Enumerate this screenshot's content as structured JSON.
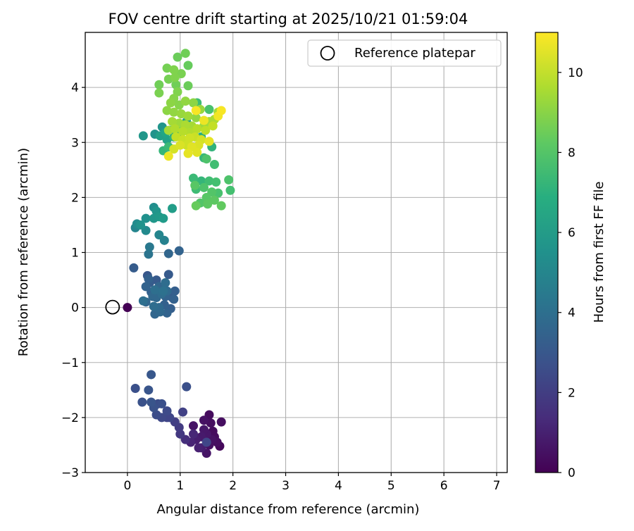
{
  "chart_data": {
    "type": "scatter",
    "title": "FOV centre drift starting at 2025/10/21 01:59:04",
    "xlabel": "Angular distance from reference (arcmin)",
    "ylabel": "Rotation from reference (arcmin)",
    "xlim": [
      -0.8,
      7.2
    ],
    "ylim": [
      -3.0,
      5.0
    ],
    "xticks": [
      0,
      1,
      2,
      3,
      4,
      5,
      6,
      7
    ],
    "yticks": [
      -3,
      -2,
      -1,
      0,
      1,
      2,
      3,
      4
    ],
    "xtick_labels": [
      "0",
      "1",
      "2",
      "3",
      "4",
      "5",
      "6",
      "7"
    ],
    "ytick_labels": [
      "−3",
      "−2",
      "−1",
      "0",
      "1",
      "2",
      "3",
      "4"
    ],
    "grid": true,
    "legend": {
      "label": "Reference platepar",
      "placement": "top-right",
      "marker": "hollow-circle"
    },
    "reference_point": {
      "x": 0,
      "y": 0
    },
    "colorbar": {
      "label": "Hours from first FF file",
      "range": [
        0,
        11
      ],
      "ticks": [
        0,
        2,
        4,
        6,
        8,
        10
      ],
      "tick_labels": [
        "0",
        "2",
        "4",
        "6",
        "8",
        "10"
      ],
      "colormap": "viridis"
    },
    "series": [
      {
        "name": "FOV centre",
        "points": [
          {
            "x": 0.0,
            "y": 0.0,
            "h": 0.0
          },
          {
            "x": 1.55,
            "y": -1.95,
            "h": 0.3
          },
          {
            "x": 1.78,
            "y": -2.08,
            "h": 0.4
          },
          {
            "x": 1.45,
            "y": -2.05,
            "h": 0.5
          },
          {
            "x": 1.25,
            "y": -2.15,
            "h": 0.6
          },
          {
            "x": 1.62,
            "y": -2.25,
            "h": 0.3
          },
          {
            "x": 1.5,
            "y": -2.3,
            "h": 0.7
          },
          {
            "x": 1.4,
            "y": -2.35,
            "h": 0.8
          },
          {
            "x": 1.3,
            "y": -2.4,
            "h": 0.9
          },
          {
            "x": 1.6,
            "y": -2.4,
            "h": 0.5
          },
          {
            "x": 1.7,
            "y": -2.45,
            "h": 0.4
          },
          {
            "x": 1.75,
            "y": -2.52,
            "h": 0.2
          },
          {
            "x": 1.35,
            "y": -2.55,
            "h": 1.0
          },
          {
            "x": 1.5,
            "y": -2.65,
            "h": 0.6
          },
          {
            "x": 1.2,
            "y": -2.45,
            "h": 1.1
          },
          {
            "x": 1.65,
            "y": -2.35,
            "h": 0.3
          },
          {
            "x": 1.45,
            "y": -2.22,
            "h": 0.7
          },
          {
            "x": 1.55,
            "y": -2.5,
            "h": 0.5
          },
          {
            "x": 1.25,
            "y": -2.3,
            "h": 1.2
          },
          {
            "x": 1.4,
            "y": -2.55,
            "h": 0.9
          },
          {
            "x": 1.58,
            "y": -2.1,
            "h": 0.4
          },
          {
            "x": 1.5,
            "y": -2.45,
            "h": 2.3
          },
          {
            "x": 1.1,
            "y": -2.4,
            "h": 1.5
          },
          {
            "x": 1.0,
            "y": -2.3,
            "h": 1.8
          },
          {
            "x": 0.98,
            "y": -2.18,
            "h": 1.9
          },
          {
            "x": 1.05,
            "y": -1.9,
            "h": 2.1
          },
          {
            "x": 0.75,
            "y": -2.0,
            "h": 2.2
          },
          {
            "x": 0.65,
            "y": -2.0,
            "h": 2.4
          },
          {
            "x": 0.75,
            "y": -1.88,
            "h": 2.5
          },
          {
            "x": 0.55,
            "y": -1.95,
            "h": 2.6
          },
          {
            "x": 0.65,
            "y": -1.75,
            "h": 2.7
          },
          {
            "x": 0.5,
            "y": -1.82,
            "h": 2.8
          },
          {
            "x": 0.45,
            "y": -1.72,
            "h": 2.9
          },
          {
            "x": 0.58,
            "y": -1.75,
            "h": 2.6
          },
          {
            "x": 0.28,
            "y": -1.72,
            "h": 2.8
          },
          {
            "x": 0.15,
            "y": -1.47,
            "h": 2.7
          },
          {
            "x": 0.4,
            "y": -1.5,
            "h": 2.9
          },
          {
            "x": 0.45,
            "y": -1.22,
            "h": 3.0
          },
          {
            "x": 1.12,
            "y": -1.44,
            "h": 2.7
          },
          {
            "x": 0.9,
            "y": -2.08,
            "h": 2.0
          },
          {
            "x": 0.8,
            "y": -2.0,
            "h": 2.3
          },
          {
            "x": 0.52,
            "y": -0.12,
            "h": 3.6
          },
          {
            "x": 0.62,
            "y": -0.08,
            "h": 3.7
          },
          {
            "x": 0.75,
            "y": -0.1,
            "h": 3.5
          },
          {
            "x": 0.6,
            "y": 0.0,
            "h": 3.8
          },
          {
            "x": 0.7,
            "y": 0.05,
            "h": 3.4
          },
          {
            "x": 0.82,
            "y": -0.02,
            "h": 3.3
          },
          {
            "x": 0.5,
            "y": 0.02,
            "h": 3.9
          },
          {
            "x": 0.3,
            "y": 0.12,
            "h": 4.0
          },
          {
            "x": 0.35,
            "y": 0.1,
            "h": 3.6
          },
          {
            "x": 0.55,
            "y": 0.18,
            "h": 3.7
          },
          {
            "x": 0.72,
            "y": 0.2,
            "h": 3.5
          },
          {
            "x": 0.85,
            "y": 0.18,
            "h": 3.2
          },
          {
            "x": 0.65,
            "y": 0.25,
            "h": 3.9
          },
          {
            "x": 0.45,
            "y": 0.28,
            "h": 3.4
          },
          {
            "x": 0.75,
            "y": 0.3,
            "h": 3.8
          },
          {
            "x": 0.9,
            "y": 0.3,
            "h": 3.3
          },
          {
            "x": 0.68,
            "y": 0.3,
            "h": 4.1
          },
          {
            "x": 0.35,
            "y": 0.38,
            "h": 3.5
          },
          {
            "x": 0.6,
            "y": 0.38,
            "h": 3.6
          },
          {
            "x": 0.42,
            "y": 0.45,
            "h": 3.2
          },
          {
            "x": 0.55,
            "y": 0.5,
            "h": 3.1
          },
          {
            "x": 0.4,
            "y": 0.52,
            "h": 3.4
          },
          {
            "x": 0.72,
            "y": 0.45,
            "h": 3.9
          },
          {
            "x": 0.38,
            "y": 0.58,
            "h": 3.0
          },
          {
            "x": 0.78,
            "y": 0.6,
            "h": 3.1
          },
          {
            "x": 0.48,
            "y": 0.2,
            "h": 3.7
          },
          {
            "x": 0.52,
            "y": 0.32,
            "h": 4.0
          },
          {
            "x": 0.88,
            "y": 0.15,
            "h": 3.4
          },
          {
            "x": 0.12,
            "y": 0.72,
            "h": 3.2
          },
          {
            "x": 0.78,
            "y": 0.98,
            "h": 3.6
          },
          {
            "x": 0.98,
            "y": 1.03,
            "h": 3.5
          },
          {
            "x": 0.4,
            "y": 0.97,
            "h": 4.2
          },
          {
            "x": 0.42,
            "y": 1.1,
            "h": 4.4
          },
          {
            "x": 0.7,
            "y": 1.22,
            "h": 4.8
          },
          {
            "x": 0.6,
            "y": 1.32,
            "h": 5.0
          },
          {
            "x": 0.35,
            "y": 1.4,
            "h": 5.2
          },
          {
            "x": 0.15,
            "y": 1.45,
            "h": 5.0
          },
          {
            "x": 0.18,
            "y": 1.52,
            "h": 5.3
          },
          {
            "x": 0.25,
            "y": 1.5,
            "h": 5.6
          },
          {
            "x": 0.35,
            "y": 1.62,
            "h": 5.5
          },
          {
            "x": 0.5,
            "y": 1.62,
            "h": 5.8
          },
          {
            "x": 0.6,
            "y": 1.65,
            "h": 5.9
          },
          {
            "x": 0.68,
            "y": 1.62,
            "h": 6.0
          },
          {
            "x": 0.55,
            "y": 1.75,
            "h": 5.7
          },
          {
            "x": 0.5,
            "y": 1.82,
            "h": 5.4
          },
          {
            "x": 0.85,
            "y": 1.8,
            "h": 6.1
          },
          {
            "x": 0.3,
            "y": 3.12,
            "h": 5.8
          },
          {
            "x": 0.52,
            "y": 3.15,
            "h": 5.6
          },
          {
            "x": 0.62,
            "y": 3.12,
            "h": 6.2
          },
          {
            "x": 0.72,
            "y": 3.18,
            "h": 6.5
          },
          {
            "x": 0.66,
            "y": 3.28,
            "h": 5.7
          },
          {
            "x": 0.8,
            "y": 3.22,
            "h": 6.8
          },
          {
            "x": 0.75,
            "y": 3.05,
            "h": 6.3
          },
          {
            "x": 0.88,
            "y": 3.1,
            "h": 7.0
          },
          {
            "x": 0.68,
            "y": 2.85,
            "h": 7.2
          },
          {
            "x": 0.78,
            "y": 2.92,
            "h": 7.4
          },
          {
            "x": 1.12,
            "y": 3.38,
            "h": 6.2
          },
          {
            "x": 1.0,
            "y": 3.2,
            "h": 6.6
          },
          {
            "x": 1.25,
            "y": 3.18,
            "h": 6.4
          },
          {
            "x": 1.4,
            "y": 3.1,
            "h": 6.9
          },
          {
            "x": 1.6,
            "y": 2.92,
            "h": 7.1
          },
          {
            "x": 1.45,
            "y": 2.72,
            "h": 7.3
          },
          {
            "x": 1.32,
            "y": 3.72,
            "h": 7.5
          },
          {
            "x": 1.55,
            "y": 3.6,
            "h": 7.8
          },
          {
            "x": 1.25,
            "y": 2.35,
            "h": 7.4
          },
          {
            "x": 1.4,
            "y": 2.3,
            "h": 7.2
          },
          {
            "x": 1.55,
            "y": 2.3,
            "h": 7.6
          },
          {
            "x": 1.68,
            "y": 2.28,
            "h": 7.7
          },
          {
            "x": 1.3,
            "y": 2.15,
            "h": 7.5
          },
          {
            "x": 1.45,
            "y": 2.18,
            "h": 7.9
          },
          {
            "x": 1.6,
            "y": 2.1,
            "h": 8.0
          },
          {
            "x": 1.72,
            "y": 2.08,
            "h": 7.8
          },
          {
            "x": 1.5,
            "y": 2.0,
            "h": 8.1
          },
          {
            "x": 1.65,
            "y": 1.95,
            "h": 8.2
          },
          {
            "x": 1.78,
            "y": 1.85,
            "h": 8.3
          },
          {
            "x": 1.38,
            "y": 1.9,
            "h": 8.0
          },
          {
            "x": 1.3,
            "y": 1.85,
            "h": 8.4
          },
          {
            "x": 1.52,
            "y": 1.88,
            "h": 8.2
          },
          {
            "x": 1.92,
            "y": 2.32,
            "h": 7.9
          },
          {
            "x": 1.95,
            "y": 2.13,
            "h": 7.7
          },
          {
            "x": 1.28,
            "y": 2.22,
            "h": 8.1
          },
          {
            "x": 1.65,
            "y": 2.6,
            "h": 7.6
          },
          {
            "x": 1.5,
            "y": 2.7,
            "h": 7.9
          },
          {
            "x": 0.6,
            "y": 4.05,
            "h": 8.6
          },
          {
            "x": 0.6,
            "y": 3.9,
            "h": 8.8
          },
          {
            "x": 0.75,
            "y": 4.35,
            "h": 8.7
          },
          {
            "x": 0.88,
            "y": 4.32,
            "h": 8.9
          },
          {
            "x": 0.95,
            "y": 4.55,
            "h": 8.5
          },
          {
            "x": 1.1,
            "y": 4.62,
            "h": 8.6
          },
          {
            "x": 1.15,
            "y": 4.4,
            "h": 8.4
          },
          {
            "x": 1.02,
            "y": 4.25,
            "h": 8.8
          },
          {
            "x": 0.9,
            "y": 4.18,
            "h": 8.9
          },
          {
            "x": 0.78,
            "y": 4.15,
            "h": 8.7
          },
          {
            "x": 1.15,
            "y": 4.03,
            "h": 8.5
          },
          {
            "x": 0.92,
            "y": 4.05,
            "h": 8.6
          },
          {
            "x": 0.95,
            "y": 3.92,
            "h": 8.9
          },
          {
            "x": 0.88,
            "y": 3.8,
            "h": 9.0
          },
          {
            "x": 0.82,
            "y": 3.72,
            "h": 9.1
          },
          {
            "x": 0.98,
            "y": 3.68,
            "h": 9.0
          },
          {
            "x": 1.1,
            "y": 3.75,
            "h": 9.2
          },
          {
            "x": 1.25,
            "y": 3.72,
            "h": 9.1
          },
          {
            "x": 1.38,
            "y": 3.6,
            "h": 9.3
          },
          {
            "x": 0.75,
            "y": 3.58,
            "h": 9.1
          },
          {
            "x": 0.88,
            "y": 3.55,
            "h": 9.2
          },
          {
            "x": 1.02,
            "y": 3.52,
            "h": 9.3
          },
          {
            "x": 1.15,
            "y": 3.48,
            "h": 9.4
          },
          {
            "x": 1.3,
            "y": 3.45,
            "h": 9.2
          },
          {
            "x": 0.85,
            "y": 3.38,
            "h": 9.5
          },
          {
            "x": 0.98,
            "y": 3.35,
            "h": 9.4
          },
          {
            "x": 1.1,
            "y": 3.32,
            "h": 9.6
          },
          {
            "x": 1.22,
            "y": 3.3,
            "h": 9.5
          },
          {
            "x": 1.45,
            "y": 3.3,
            "h": 9.4
          },
          {
            "x": 1.55,
            "y": 3.38,
            "h": 9.5
          },
          {
            "x": 1.65,
            "y": 3.42,
            "h": 9.6
          },
          {
            "x": 1.72,
            "y": 3.55,
            "h": 9.5
          },
          {
            "x": 0.78,
            "y": 3.22,
            "h": 9.5
          },
          {
            "x": 0.9,
            "y": 3.25,
            "h": 9.7
          },
          {
            "x": 1.05,
            "y": 3.2,
            "h": 9.8
          },
          {
            "x": 1.18,
            "y": 3.18,
            "h": 9.7
          },
          {
            "x": 1.32,
            "y": 3.25,
            "h": 9.8
          },
          {
            "x": 1.48,
            "y": 3.22,
            "h": 9.9
          },
          {
            "x": 1.62,
            "y": 3.3,
            "h": 10.0
          },
          {
            "x": 0.92,
            "y": 3.1,
            "h": 10.0
          },
          {
            "x": 1.05,
            "y": 3.05,
            "h": 10.1
          },
          {
            "x": 1.18,
            "y": 3.08,
            "h": 10.2
          },
          {
            "x": 1.28,
            "y": 3.1,
            "h": 10.1
          },
          {
            "x": 1.4,
            "y": 3.05,
            "h": 10.3
          },
          {
            "x": 1.0,
            "y": 2.95,
            "h": 10.4
          },
          {
            "x": 1.12,
            "y": 2.95,
            "h": 10.2
          },
          {
            "x": 1.22,
            "y": 2.92,
            "h": 10.5
          },
          {
            "x": 1.35,
            "y": 2.95,
            "h": 10.4
          },
          {
            "x": 0.88,
            "y": 2.88,
            "h": 10.3
          },
          {
            "x": 1.15,
            "y": 2.8,
            "h": 10.6
          },
          {
            "x": 1.32,
            "y": 2.82,
            "h": 10.5
          },
          {
            "x": 0.78,
            "y": 2.75,
            "h": 10.7
          },
          {
            "x": 1.55,
            "y": 3.02,
            "h": 10.6
          },
          {
            "x": 1.78,
            "y": 3.58,
            "h": 10.9
          },
          {
            "x": 1.72,
            "y": 3.48,
            "h": 10.8
          },
          {
            "x": 1.45,
            "y": 3.4,
            "h": 10.7
          },
          {
            "x": 1.3,
            "y": 3.58,
            "h": 10.9
          }
        ]
      }
    ]
  }
}
